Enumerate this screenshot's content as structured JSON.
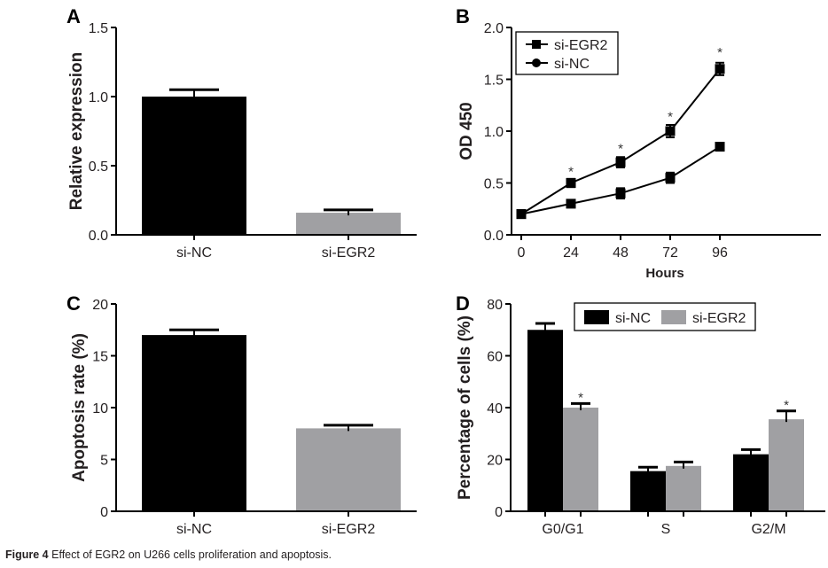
{
  "caption": {
    "label": "Figure 4",
    "text": "Effect of EGR2 on U266 cells proliferation and apoptosis."
  },
  "colors": {
    "si_NC": "#000000",
    "si_EGR2": "#a0a0a3",
    "axis": "#000000"
  },
  "chart_data": [
    {
      "panel": "A",
      "type": "bar",
      "title": "",
      "xlabel": "",
      "ylabel": "Relative expression",
      "ylim": [
        0,
        1.5
      ],
      "yticks": [
        "0.0",
        "0.5",
        "1.0",
        "1.5"
      ],
      "categories": [
        "si-NC",
        "si-EGR2"
      ],
      "values": [
        1.0,
        0.16
      ],
      "errors": [
        0.05,
        0.02
      ],
      "colors": [
        "#000000",
        "#a0a0a3"
      ],
      "legend": null
    },
    {
      "panel": "B",
      "type": "line",
      "title": "",
      "xlabel": "Hours",
      "ylabel": "OD 450",
      "xlim": [
        0,
        145
      ],
      "ylim": [
        0,
        2.0
      ],
      "xticks": [
        "0",
        "24",
        "48",
        "72",
        "96"
      ],
      "yticks": [
        "0.0",
        "0.5",
        "1.0",
        "1.5",
        "2.0"
      ],
      "x": [
        0,
        24,
        48,
        72,
        96
      ],
      "series": [
        {
          "name": "si-EGR2",
          "marker": "square",
          "values": [
            0.2,
            0.5,
            0.7,
            1.0,
            1.6
          ],
          "errors": [
            0.02,
            0.04,
            0.05,
            0.06,
            0.06
          ]
        },
        {
          "name": "si-NC",
          "marker": "circle",
          "values": [
            0.2,
            0.3,
            0.4,
            0.55,
            0.85
          ],
          "errors": [
            0.02,
            0.03,
            0.05,
            0.05,
            0.03
          ]
        }
      ],
      "annotations": [
        {
          "text": "*",
          "x": 24,
          "y": 0.62
        },
        {
          "text": "*",
          "x": 48,
          "y": 0.84
        },
        {
          "text": "*",
          "x": 72,
          "y": 1.15
        },
        {
          "text": "*",
          "x": 96,
          "y": 1.77
        }
      ],
      "legend": "top-left"
    },
    {
      "panel": "C",
      "type": "bar",
      "title": "",
      "xlabel": "",
      "ylabel": "Apoptosis rate (%)",
      "ylim": [
        0,
        20
      ],
      "yticks": [
        "0",
        "5",
        "10",
        "15",
        "20"
      ],
      "categories": [
        "si-NC",
        "si-EGR2"
      ],
      "values": [
        17.0,
        8.0
      ],
      "errors": [
        0.5,
        0.3
      ],
      "colors": [
        "#000000",
        "#a0a0a3"
      ],
      "legend": null
    },
    {
      "panel": "D",
      "type": "bar",
      "title": "",
      "xlabel": "",
      "ylabel": "Percentage of cells (%)",
      "ylim": [
        0,
        80
      ],
      "yticks": [
        "0",
        "20",
        "40",
        "60",
        "80"
      ],
      "categories": [
        "G0/G1",
        "S",
        "G2/M"
      ],
      "series": [
        {
          "name": "si-NC",
          "color": "#000000",
          "values": [
            70,
            15.5,
            22
          ],
          "errors": [
            2.5,
            1.5,
            1.8
          ]
        },
        {
          "name": "si-EGR2",
          "color": "#a0a0a3",
          "values": [
            40,
            17.5,
            35.5
          ],
          "errors": [
            1.6,
            1.5,
            3.2
          ]
        }
      ],
      "annotations": [
        {
          "text": "*",
          "category": "G0/G1",
          "series": "si-EGR2"
        },
        {
          "text": "*",
          "category": "G2/M",
          "series": "si-EGR2"
        }
      ],
      "legend": "top-right"
    }
  ]
}
